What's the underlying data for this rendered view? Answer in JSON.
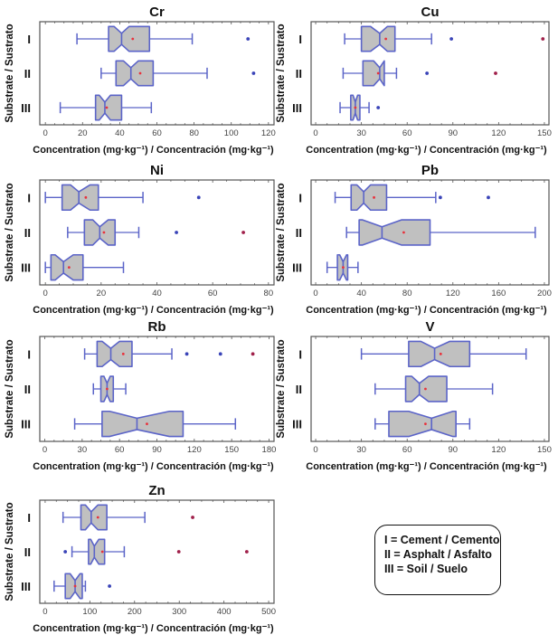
{
  "chart_data": [
    {
      "type": "boxplot",
      "title": "Cr",
      "xlabel": "Concentration (mg·kg⁻¹) / Concentración (mg·kg⁻¹)",
      "ylabel": "Substrate / Sustrato",
      "xlim": [
        -3,
        123
      ],
      "xticks": [
        0,
        20,
        40,
        60,
        80,
        100,
        120
      ],
      "categories": [
        "I",
        "II",
        "III"
      ],
      "boxes": [
        {
          "group": "I",
          "whisker_low": 17,
          "q1": 34,
          "median": 41,
          "q3": 56,
          "whisker_high": 79,
          "notch": [
            37,
            45
          ],
          "mean": 47,
          "outliers": [
            {
              "value": 109,
              "type": "outlier"
            }
          ]
        },
        {
          "group": "II",
          "whisker_low": 30,
          "q1": 38,
          "median": 46,
          "q3": 58,
          "whisker_high": 87,
          "notch": [
            42,
            50
          ],
          "mean": 51,
          "outliers": [
            {
              "value": 112,
              "type": "outlier"
            }
          ]
        },
        {
          "group": "III",
          "whisker_low": 8,
          "q1": 27,
          "median": 32,
          "q3": 41,
          "whisker_high": 57,
          "notch": [
            29,
            35
          ],
          "mean": 33,
          "outliers": []
        }
      ]
    },
    {
      "type": "boxplot",
      "title": "Cu",
      "xlabel": "Concentration (mg·kg⁻¹) / Concentración (mg·kg⁻¹)",
      "ylabel": "Substrate / Sustrato",
      "xlim": [
        -3,
        153
      ],
      "xticks": [
        0,
        30,
        60,
        90,
        120,
        150
      ],
      "categories": [
        "I",
        "II",
        "III"
      ],
      "boxes": [
        {
          "group": "I",
          "whisker_low": 19,
          "q1": 30,
          "median": 42,
          "q3": 52,
          "whisker_high": 76,
          "notch": [
            36,
            47
          ],
          "mean": 46,
          "outliers": [
            {
              "value": 89,
              "type": "outlier"
            },
            {
              "value": 149,
              "type": "far"
            }
          ]
        },
        {
          "group": "II",
          "whisker_low": 18,
          "q1": 31,
          "median": 42,
          "q3": 45,
          "whisker_high": 53,
          "notch": [
            38,
            45
          ],
          "mean": 41,
          "outliers": [
            {
              "value": 73,
              "type": "outlier"
            },
            {
              "value": 118,
              "type": "far"
            }
          ]
        },
        {
          "group": "III",
          "whisker_low": 16,
          "q1": 23,
          "median": 26,
          "q3": 29,
          "whisker_high": 35,
          "notch": [
            24.5,
            27.5
          ],
          "mean": 26,
          "outliers": [
            {
              "value": 41,
              "type": "outlier"
            }
          ]
        }
      ]
    },
    {
      "type": "boxplot",
      "title": "Ni",
      "xlabel": "Concentration (mg·kg⁻¹) / Concentración (mg·kg⁻¹)",
      "ylabel": "Substrate / Sustrato",
      "xlim": [
        -2,
        82
      ],
      "xticks": [
        0,
        20,
        40,
        60,
        80
      ],
      "categories": [
        "I",
        "II",
        "III"
      ],
      "boxes": [
        {
          "group": "I",
          "whisker_low": 0,
          "q1": 6,
          "median": 12,
          "q3": 19,
          "whisker_high": 35,
          "notch": [
            9,
            16
          ],
          "mean": 14.5,
          "outliers": [
            {
              "value": 55,
              "type": "outlier"
            }
          ]
        },
        {
          "group": "II",
          "whisker_low": 8,
          "q1": 14,
          "median": 19.5,
          "q3": 25,
          "whisker_high": 33.5,
          "notch": [
            17,
            22.5
          ],
          "mean": 21,
          "outliers": [
            {
              "value": 47,
              "type": "outlier"
            },
            {
              "value": 71,
              "type": "far"
            }
          ]
        },
        {
          "group": "III",
          "whisker_low": 0,
          "q1": 2,
          "median": 6.5,
          "q3": 13.5,
          "whisker_high": 28,
          "notch": [
            3.5,
            10
          ],
          "mean": 8.5,
          "outliers": []
        }
      ]
    },
    {
      "type": "boxplot",
      "title": "Pb",
      "xlabel": "Concentration (mg·kg⁻¹) / Concentración (mg·kg⁻¹)",
      "ylabel": "Substrate / Sustrato",
      "xlim": [
        -4,
        204
      ],
      "xticks": [
        0,
        40,
        80,
        120,
        160,
        200
      ],
      "categories": [
        "I",
        "II",
        "III"
      ],
      "boxes": [
        {
          "group": "I",
          "whisker_low": 17,
          "q1": 31,
          "median": 42,
          "q3": 62,
          "whisker_high": 105,
          "notch": [
            36,
            48
          ],
          "mean": 51,
          "outliers": [
            {
              "value": 109,
              "type": "outlier"
            },
            {
              "value": 151,
              "type": "outlier"
            }
          ]
        },
        {
          "group": "II",
          "whisker_low": 27,
          "q1": 38,
          "median": 58,
          "q3": 100,
          "whisker_high": 192,
          "notch": [
            41,
            75
          ],
          "mean": 77,
          "outliers": []
        },
        {
          "group": "III",
          "whisker_low": 10,
          "q1": 19,
          "median": 24,
          "q3": 28,
          "whisker_high": 37,
          "notch": [
            21,
            27
          ],
          "mean": 24,
          "outliers": []
        }
      ]
    },
    {
      "type": "boxplot",
      "title": "Rb",
      "xlabel": "Concentration (mg·kg⁻¹) / Concentración (mg·kg⁻¹)",
      "ylabel": "Substrate / Sustrato",
      "xlim": [
        -4,
        184
      ],
      "xticks": [
        0,
        30,
        60,
        90,
        120,
        150,
        180
      ],
      "categories": [
        "I",
        "II",
        "III"
      ],
      "boxes": [
        {
          "group": "I",
          "whisker_low": 32,
          "q1": 42,
          "median": 53,
          "q3": 70,
          "whisker_high": 102,
          "notch": [
            46,
            60
          ],
          "mean": 63,
          "outliers": [
            {
              "value": 114,
              "type": "outlier"
            },
            {
              "value": 141,
              "type": "outlier"
            },
            {
              "value": 167,
              "type": "far"
            }
          ]
        },
        {
          "group": "II",
          "whisker_low": 39,
          "q1": 45,
          "median": 50,
          "q3": 55,
          "whisker_high": 65,
          "notch": [
            47.5,
            52.5
          ],
          "mean": 50,
          "outliers": []
        },
        {
          "group": "III",
          "whisker_low": 24,
          "q1": 46,
          "median": 74,
          "q3": 111,
          "whisker_high": 153,
          "notch": [
            52,
            100
          ],
          "mean": 82,
          "outliers": []
        }
      ]
    },
    {
      "type": "boxplot",
      "title": "V",
      "xlabel": "Concentration (mg·kg⁻¹) / Concentración (mg·kg⁻¹)",
      "ylabel": "Substrate / Sustrato",
      "xlim": [
        -3,
        153
      ],
      "xticks": [
        0,
        30,
        60,
        90,
        120,
        150
      ],
      "categories": [
        "I",
        "II",
        "III"
      ],
      "boxes": [
        {
          "group": "I",
          "whisker_low": 30,
          "q1": 61,
          "median": 78,
          "q3": 101,
          "whisker_high": 138,
          "notch": [
            69,
            88
          ],
          "mean": 82,
          "outliers": []
        },
        {
          "group": "II",
          "whisker_low": 39,
          "q1": 59,
          "median": 68,
          "q3": 86,
          "whisker_high": 116,
          "notch": [
            63,
            74
          ],
          "mean": 72,
          "outliers": []
        },
        {
          "group": "III",
          "whisker_low": 39,
          "q1": 48,
          "median": 76,
          "q3": 92,
          "whisker_high": 101,
          "notch": [
            61,
            90
          ],
          "mean": 72,
          "outliers": []
        }
      ]
    },
    {
      "type": "boxplot",
      "title": "Zn",
      "xlabel": "Concentration (mg·kg⁻¹) / Concentración (mg·kg⁻¹)",
      "ylabel": "Substrate / Sustrato",
      "xlim": [
        -12,
        512
      ],
      "xticks": [
        0,
        100,
        200,
        300,
        400,
        500
      ],
      "categories": [
        "I",
        "II",
        "III"
      ],
      "boxes": [
        {
          "group": "I",
          "whisker_low": 40,
          "q1": 80,
          "median": 103,
          "q3": 138,
          "whisker_high": 223,
          "notch": [
            90,
            118
          ],
          "mean": 118,
          "outliers": [
            {
              "value": 330,
              "type": "far"
            }
          ]
        },
        {
          "group": "II",
          "whisker_low": 60,
          "q1": 97,
          "median": 110,
          "q3": 133,
          "whisker_high": 177,
          "notch": [
            102,
            120
          ],
          "mean": 128,
          "outliers": [
            {
              "value": 45,
              "type": "outlier"
            },
            {
              "value": 299,
              "type": "far"
            },
            {
              "value": 451,
              "type": "far"
            }
          ]
        },
        {
          "group": "III",
          "whisker_low": 20,
          "q1": 45,
          "median": 67,
          "q3": 83,
          "whisker_high": 90,
          "notch": [
            56,
            78
          ],
          "mean": 67,
          "outliers": [
            {
              "value": 144,
              "type": "outlier"
            }
          ]
        }
      ]
    }
  ],
  "legend": {
    "lines": [
      "I = Cement / Cemento",
      "II = Asphalt / Asfalto",
      "III = Soil / Suelo"
    ]
  },
  "colors": {
    "box_fill": "#c0c0c0",
    "box_stroke": "#5b64c8",
    "mean_marker": "#e8323c",
    "outlier": "#3a44b8",
    "far_outlier": "#a0204a",
    "frame": "#555555",
    "text": "#111111"
  }
}
